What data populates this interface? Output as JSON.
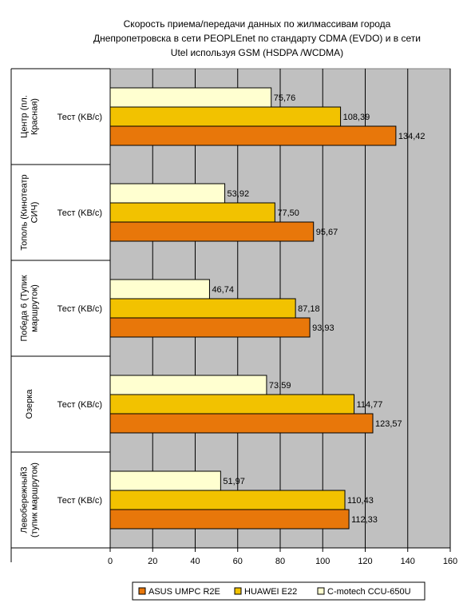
{
  "chart_data": {
    "type": "bar",
    "orientation": "horizontal",
    "title_lines": [
      "Скорость приема/передачи данных по жилмассивам города",
      "Днепропетровска в сети  PEOPLEnet по стандарту CDMA (EVDO) и в сети",
      "Utel используя GSM (HSDPA /WCDMA)"
    ],
    "groups": [
      {
        "name_lines": [
          "Центр (пл.",
          "Красная)"
        ],
        "sub": "Тест (KB/c)"
      },
      {
        "name_lines": [
          "Тополь (Кинотеатр",
          "СИЧ)"
        ],
        "sub": "Тест (KB/c)"
      },
      {
        "name_lines": [
          "Победа 6 (Тупик",
          "маршруток)"
        ],
        "sub": "Тест (KB/c)"
      },
      {
        "name_lines": [
          "Озерка"
        ],
        "sub": "Тест (KB/c)"
      },
      {
        "name_lines": [
          "Левобережный3",
          "(тупик маршруток)"
        ],
        "sub": "Тест (KB/c)"
      }
    ],
    "series": [
      {
        "name": "ASUS UMPC R2E",
        "color": "#E8770A",
        "values": [
          134.42,
          95.67,
          93.93,
          123.57,
          112.33
        ],
        "labels": [
          "134,42",
          "95,67",
          "93,93",
          "123,57",
          "112,33"
        ]
      },
      {
        "name": "HUAWEI E22",
        "color": "#F2C200",
        "values": [
          108.39,
          77.5,
          87.18,
          114.77,
          110.43
        ],
        "labels": [
          "108,39",
          "77,50",
          "87,18",
          "114,77",
          "110,43"
        ]
      },
      {
        "name": "C-motech CCU-650U",
        "color": "#FFFFD0",
        "values": [
          75.76,
          53.92,
          46.74,
          73.59,
          51.97
        ],
        "labels": [
          "75,76",
          "53,92",
          "46,74",
          "73,59",
          "51,97"
        ]
      }
    ],
    "xlim": [
      0,
      160
    ],
    "xticks": [
      0,
      20,
      40,
      60,
      80,
      100,
      120,
      140,
      160
    ],
    "grid": true,
    "plot_background": "#C0C0C0",
    "legend_position": "bottom"
  }
}
